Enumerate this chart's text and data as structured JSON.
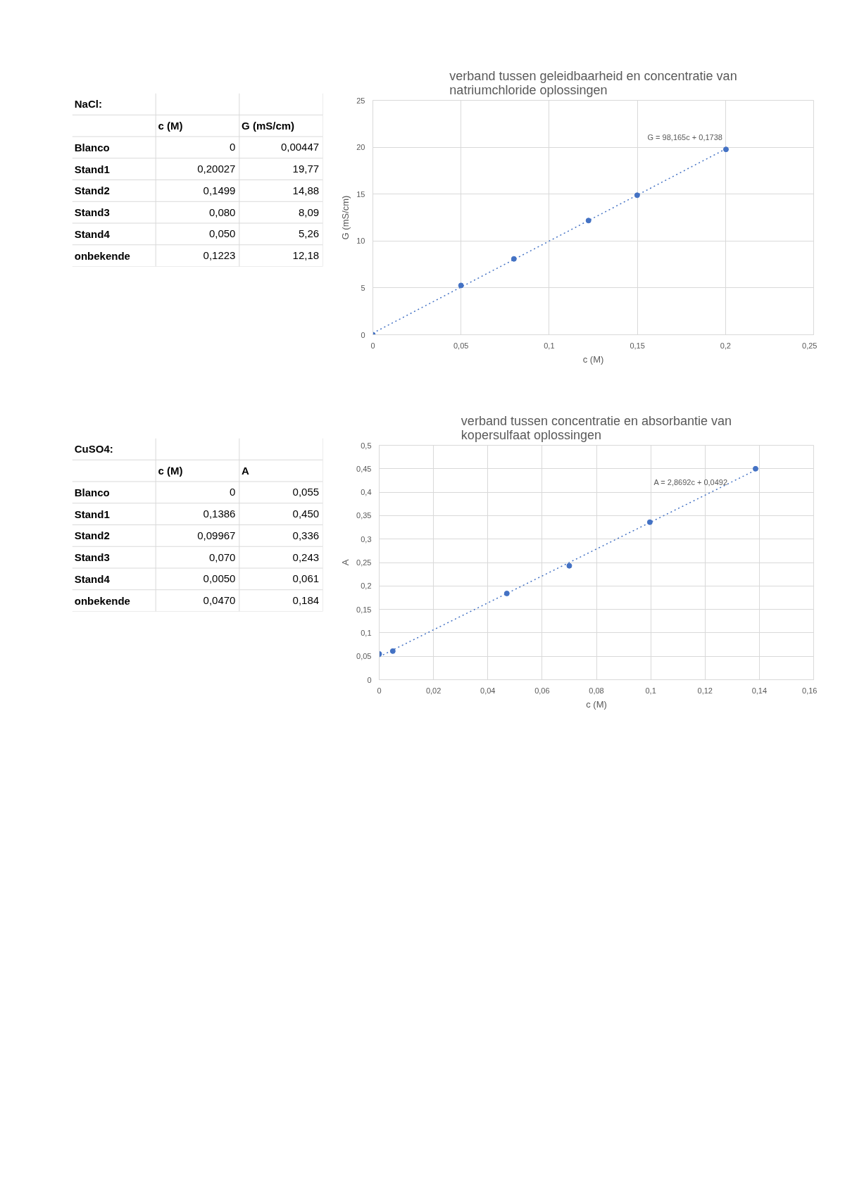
{
  "chart_data": [
    {
      "type": "other",
      "title": "NaCl:",
      "annotations": [
        "c (M)",
        "G (mS/cm)",
        "Blanco",
        "0",
        "0,00447",
        "Stand1",
        "0,20027",
        "19,77",
        "Stand2",
        "0,1499",
        "14,88",
        "Stand3",
        "0,080",
        "8,09",
        "Stand4",
        "0,050",
        "5,26",
        "onbekende",
        "0,1223",
        "12,18"
      ]
    },
    {
      "type": "scatter",
      "title": "verband tussen geleidbaarheid en concentratie van natriumchloride oplossingen",
      "xlabel": "c (M)",
      "ylabel": "G (mS/cm)",
      "annotations": [
        "G = 98,165c + 0,1738"
      ],
      "series": [
        {
          "type": "scatter",
          "marker": "circle",
          "color": "#4472c4",
          "x": [
            0,
            0.20027,
            0.1499,
            0.08,
            0.05,
            0.1223
          ],
          "values": [
            0.00447,
            19.77,
            14.88,
            8.09,
            5.26,
            12.18
          ]
        },
        {
          "type": "line",
          "line_style": "dotted",
          "color": "#4472c4",
          "x": [
            0,
            0.20027
          ],
          "values": [
            0.17,
            19.83
          ]
        }
      ],
      "xlim": [
        0,
        0.25
      ],
      "xticks": [
        0,
        {
          "value": 0.05,
          "label": "0,05"
        },
        {
          "value": 0.1,
          "label": "0,1"
        },
        {
          "value": 0.15,
          "label": "0,15"
        },
        {
          "value": 0.2,
          "label": "0,2"
        },
        {
          "value": 0.25,
          "label": "0,25"
        }
      ],
      "ylim": [
        0,
        25
      ],
      "yticks": [
        0,
        5,
        10,
        15,
        20,
        25
      ],
      "grid": true
    },
    {
      "type": "other",
      "title": "CuSO4:",
      "annotations": [
        "c (M)",
        "A",
        "Blanco",
        "0",
        "0,055",
        "Stand1",
        "0,1386",
        "0,450",
        "Stand2",
        "0,09967",
        "0,336",
        "Stand3",
        "0,070",
        "0,243",
        "Stand4",
        "0,0050",
        "0,061",
        "onbekende",
        "0,0470",
        "0,184"
      ]
    },
    {
      "type": "scatter",
      "title": "verband tussen concentratie en absorbantie van kopersulfaat oplossingen",
      "xlabel": "c (M)",
      "ylabel": "A",
      "annotations": [
        "A = 2,8692c + 0,0492"
      ],
      "series": [
        {
          "type": "scatter",
          "marker": "circle",
          "color": "#4472c4",
          "x": [
            0,
            0.1386,
            0.09967,
            0.07,
            0.005,
            0.047
          ],
          "values": [
            0.055,
            0.45,
            0.336,
            0.243,
            0.061,
            0.184
          ]
        },
        {
          "type": "line",
          "line_style": "dotted",
          "color": "#4472c4",
          "x": [
            0,
            0.1386
          ],
          "values": [
            0.049,
            0.447
          ]
        }
      ],
      "xlim": [
        0,
        0.16
      ],
      "xticks": [
        0,
        {
          "value": 0.02,
          "label": "0,02"
        },
        {
          "value": 0.04,
          "label": "0,04"
        },
        {
          "value": 0.06,
          "label": "0,06"
        },
        {
          "value": 0.08,
          "label": "0,08"
        },
        {
          "value": 0.1,
          "label": "0,1"
        },
        {
          "value": 0.12,
          "label": "0,12"
        },
        {
          "value": 0.14,
          "label": "0,14"
        },
        {
          "value": 0.16,
          "label": "0,16"
        }
      ],
      "ylim": [
        0,
        0.5
      ],
      "yticks": [
        0,
        {
          "value": 0.05,
          "label": "0,05"
        },
        {
          "value": 0.1,
          "label": "0,1"
        },
        {
          "value": 0.15,
          "label": "0,15"
        },
        {
          "value": 0.2,
          "label": "0,2"
        },
        {
          "value": 0.25,
          "label": "0,25"
        },
        {
          "value": 0.3,
          "label": "0,3"
        },
        {
          "value": 0.35,
          "label": "0,35"
        },
        {
          "value": 0.4,
          "label": "0,4"
        },
        {
          "value": 0.45,
          "label": "0,45"
        },
        {
          "value": 0.5,
          "label": "0,5"
        }
      ],
      "grid": true
    }
  ]
}
